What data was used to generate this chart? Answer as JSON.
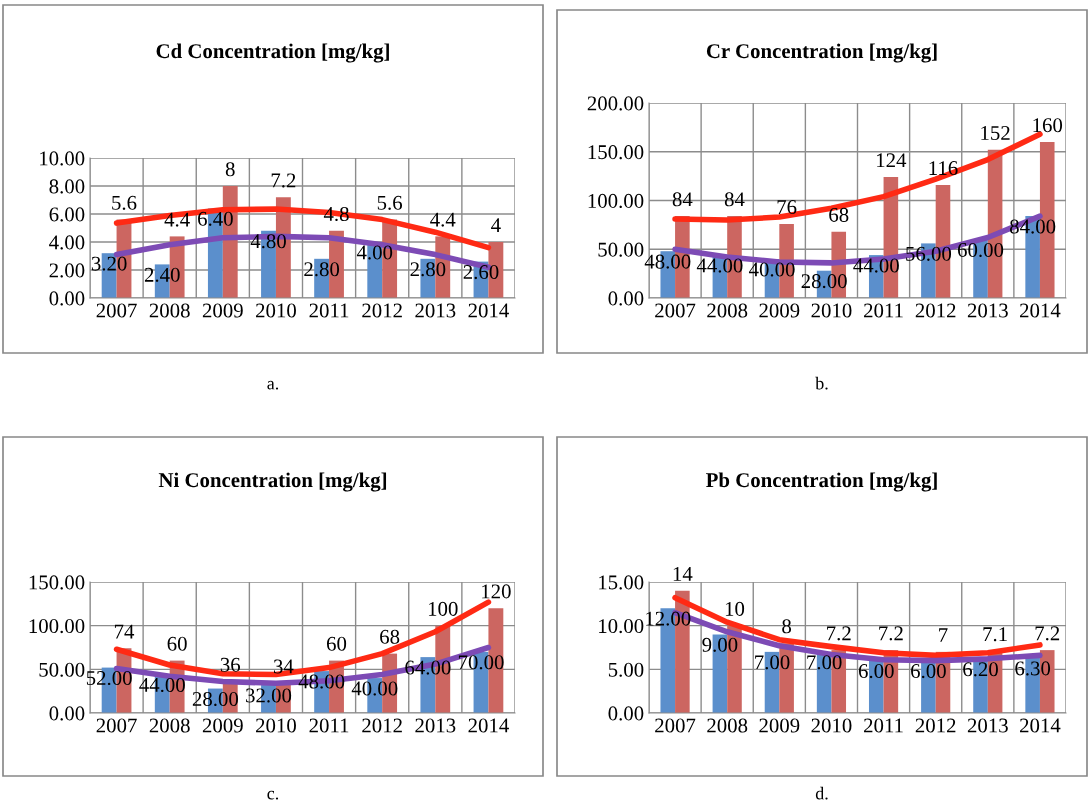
{
  "chart_data": [
    {
      "type": "bar",
      "title": "Cd Concentration [mg/kg]",
      "categories": [
        "2007",
        "2008",
        "2009",
        "2010",
        "2011",
        "2012",
        "2013",
        "2014"
      ],
      "ylim": [
        0,
        10
      ],
      "yticks": [
        {
          "value": 0,
          "label": "0.00"
        },
        {
          "value": 2,
          "label": "2.00"
        },
        {
          "value": 4,
          "label": "4.00"
        },
        {
          "value": 6,
          "label": "6.00"
        },
        {
          "value": 8,
          "label": "8.00"
        },
        {
          "value": 10,
          "label": "10.00"
        }
      ],
      "grid": true,
      "annotations": [
        "a."
      ],
      "series": [
        {
          "color": "#5b8fcc",
          "values": [
            3.2,
            2.4,
            6.4,
            4.8,
            2.8,
            4.0,
            2.8,
            2.6
          ],
          "value_labels": [
            "3.20",
            "2.40",
            "6.40",
            "4.80",
            "2.80",
            "4.00",
            "2.80",
            "2.60"
          ]
        },
        {
          "color": "#cc6661",
          "values": [
            5.6,
            4.4,
            8,
            7.2,
            4.8,
            5.6,
            4.4,
            4
          ],
          "value_labels": [
            "5.6",
            "4.4",
            "8",
            "7.2",
            "4.8",
            "5.6",
            "4.4",
            "4"
          ]
        },
        {
          "type": "line",
          "color": "#ff2a14",
          "values": [
            5.35,
            5.9,
            6.3,
            6.35,
            6.1,
            5.6,
            4.7,
            3.6
          ]
        },
        {
          "type": "line",
          "color": "#7d4bb5",
          "values": [
            3.1,
            3.8,
            4.3,
            4.4,
            4.3,
            3.8,
            3.1,
            2.2
          ]
        }
      ]
    },
    {
      "type": "bar",
      "title": "Cr Concentration [mg/kg]",
      "categories": [
        "2007",
        "2008",
        "2009",
        "2010",
        "2011",
        "2012",
        "2013",
        "2014"
      ],
      "ylim": [
        0,
        200
      ],
      "yticks": [
        {
          "value": 0,
          "label": "0.00"
        },
        {
          "value": 50,
          "label": "50.00"
        },
        {
          "value": 100,
          "label": "100.00"
        },
        {
          "value": 150,
          "label": "150.00"
        },
        {
          "value": 200,
          "label": "200.00"
        }
      ],
      "grid": true,
      "annotations": [
        "b."
      ],
      "series": [
        {
          "color": "#5b8fcc",
          "values": [
            48,
            44,
            40,
            28,
            44,
            56,
            60,
            84
          ],
          "value_labels": [
            "48.00",
            "44.00",
            "40.00",
            "28.00",
            "44.00",
            "56.00",
            "60.00",
            "84.00"
          ]
        },
        {
          "color": "#cc6661",
          "values": [
            84,
            84,
            76,
            68,
            124,
            116,
            152,
            160
          ],
          "value_labels": [
            "84",
            "84",
            "76",
            "68",
            "124",
            "116",
            "152",
            "160"
          ]
        },
        {
          "type": "line",
          "color": "#ff2a14",
          "values": [
            81,
            80,
            83,
            92,
            104,
            122,
            142,
            168
          ]
        },
        {
          "type": "line",
          "color": "#7d4bb5",
          "values": [
            50,
            42,
            37,
            36,
            40,
            48,
            62,
            84
          ]
        }
      ]
    },
    {
      "type": "bar",
      "title": "Ni Concentration [mg/kg]",
      "categories": [
        "2007",
        "2008",
        "2009",
        "2010",
        "2011",
        "2012",
        "2013",
        "2014"
      ],
      "ylim": [
        0,
        150
      ],
      "yticks": [
        {
          "value": 0,
          "label": "0.00"
        },
        {
          "value": 50,
          "label": "50.00"
        },
        {
          "value": 100,
          "label": "100.00"
        },
        {
          "value": 150,
          "label": "150.00"
        }
      ],
      "grid": true,
      "annotations": [
        "c."
      ],
      "series": [
        {
          "color": "#5b8fcc",
          "values": [
            52,
            44,
            28,
            32,
            48,
            40,
            64,
            70
          ],
          "value_labels": [
            "52.00",
            "44.00",
            "28.00",
            "32.00",
            "48.00",
            "40.00",
            "64.00",
            "70.00"
          ]
        },
        {
          "color": "#cc6661",
          "values": [
            74,
            60,
            36,
            34,
            60,
            68,
            100,
            120
          ],
          "value_labels": [
            "74",
            "60",
            "36",
            "34",
            "60",
            "68",
            "100",
            "120"
          ]
        },
        {
          "type": "line",
          "color": "#ff2a14",
          "values": [
            73,
            55,
            45,
            44,
            52,
            68,
            93,
            127
          ]
        },
        {
          "type": "line",
          "color": "#7d4bb5",
          "values": [
            51,
            42,
            36,
            34,
            37,
            44,
            56,
            75
          ]
        }
      ]
    },
    {
      "type": "bar",
      "title": "Pb Concentration [mg/kg]",
      "categories": [
        "2007",
        "2008",
        "2009",
        "2010",
        "2011",
        "2012",
        "2013",
        "2014"
      ],
      "ylim": [
        0,
        15
      ],
      "yticks": [
        {
          "value": 0,
          "label": "0.00"
        },
        {
          "value": 5,
          "label": "5.00"
        },
        {
          "value": 10,
          "label": "10.00"
        },
        {
          "value": 15,
          "label": "15.00"
        }
      ],
      "grid": true,
      "annotations": [
        "d."
      ],
      "series": [
        {
          "color": "#5b8fcc",
          "values": [
            12,
            9,
            7,
            7,
            6,
            6,
            6.2,
            6.3
          ],
          "value_labels": [
            "12.00",
            "9.00",
            "7.00",
            "7.00",
            "6.00",
            "6.00",
            "6.20",
            "6.30"
          ]
        },
        {
          "color": "#cc6661",
          "values": [
            14,
            10,
            8,
            7.2,
            7.2,
            7,
            7.1,
            7.2
          ],
          "value_labels": [
            "14",
            "10",
            "8",
            "7.2",
            "7.2",
            "7",
            "7.1",
            "7.2"
          ]
        },
        {
          "type": "line",
          "color": "#ff2a14",
          "values": [
            13.2,
            10.4,
            8.4,
            7.6,
            6.9,
            6.6,
            6.9,
            7.8
          ]
        },
        {
          "type": "line",
          "color": "#7d4bb5",
          "values": [
            11.5,
            9.3,
            7.7,
            6.7,
            6.1,
            6.0,
            6.2,
            6.6
          ]
        }
      ]
    }
  ]
}
